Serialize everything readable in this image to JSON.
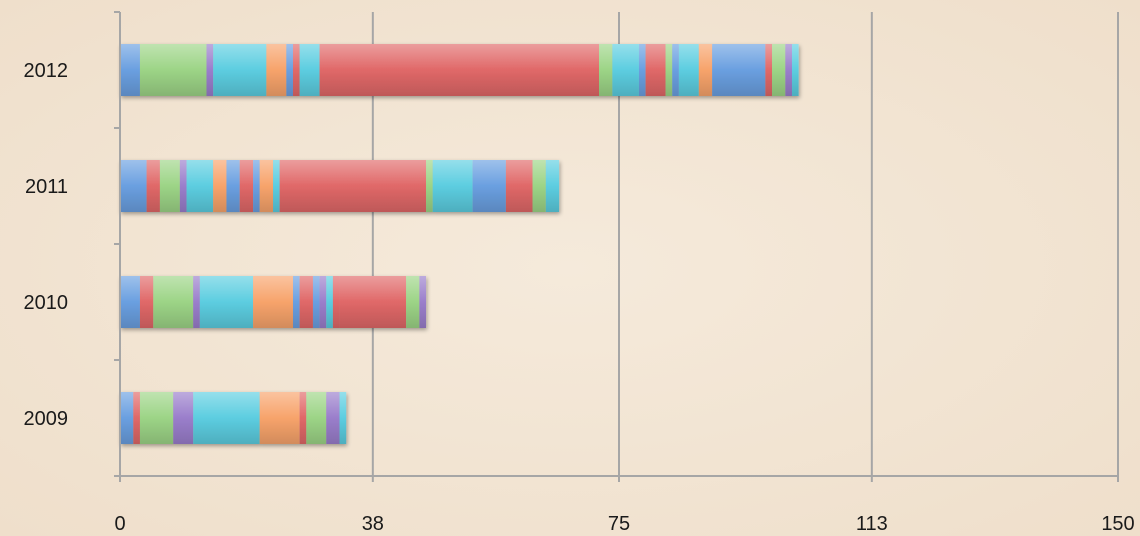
{
  "chart_data": {
    "type": "bar",
    "orientation": "horizontal",
    "stacked": true,
    "title": "",
    "xlabel": "",
    "ylabel": "",
    "categories": [
      "2009",
      "2010",
      "2011",
      "2012"
    ],
    "xlim": [
      0,
      150
    ],
    "x_ticks": [
      "0",
      "38",
      "75",
      "113",
      "150"
    ],
    "grid": "vertical",
    "legend": "none",
    "segment_colors": {
      "blue": "#6a9fe0",
      "red": "#e06868",
      "green": "#9cd486",
      "purple": "#9a7ecb",
      "cyan": "#5ccde0",
      "orange": "#f7a36b"
    },
    "stacks": [
      {
        "category": "2009",
        "segments": [
          {
            "color": "blue",
            "value": 2.0
          },
          {
            "color": "red",
            "value": 1.0
          },
          {
            "color": "green",
            "value": 5.0
          },
          {
            "color": "purple",
            "value": 3.0
          },
          {
            "color": "cyan",
            "value": 10.0
          },
          {
            "color": "orange",
            "value": 6.0
          },
          {
            "color": "red",
            "value": 1.0
          },
          {
            "color": "green",
            "value": 3.0
          },
          {
            "color": "purple",
            "value": 2.0
          },
          {
            "color": "cyan",
            "value": 1.0
          }
        ]
      },
      {
        "category": "2010",
        "segments": [
          {
            "color": "blue",
            "value": 3.0
          },
          {
            "color": "red",
            "value": 2.0
          },
          {
            "color": "green",
            "value": 6.0
          },
          {
            "color": "purple",
            "value": 1.0
          },
          {
            "color": "cyan",
            "value": 8.0
          },
          {
            "color": "orange",
            "value": 6.0
          },
          {
            "color": "blue",
            "value": 1.0
          },
          {
            "color": "red",
            "value": 2.0
          },
          {
            "color": "blue",
            "value": 1.0
          },
          {
            "color": "purple",
            "value": 1.0
          },
          {
            "color": "cyan",
            "value": 1.0
          },
          {
            "color": "red",
            "value": 1.0
          },
          {
            "color": "red",
            "value": 10.0
          },
          {
            "color": "green",
            "value": 2.0
          },
          {
            "color": "purple",
            "value": 1.0
          }
        ]
      },
      {
        "category": "2011",
        "segments": [
          {
            "color": "blue",
            "value": 4.0
          },
          {
            "color": "red",
            "value": 2.0
          },
          {
            "color": "green",
            "value": 3.0
          },
          {
            "color": "purple",
            "value": 1.0
          },
          {
            "color": "cyan",
            "value": 4.0
          },
          {
            "color": "orange",
            "value": 2.0
          },
          {
            "color": "blue",
            "value": 2.0
          },
          {
            "color": "red",
            "value": 2.0
          },
          {
            "color": "blue",
            "value": 1.0
          },
          {
            "color": "orange",
            "value": 2.0
          },
          {
            "color": "cyan",
            "value": 1.0
          },
          {
            "color": "red",
            "value": 22.0
          },
          {
            "color": "green",
            "value": 1.0
          },
          {
            "color": "cyan",
            "value": 6.0
          },
          {
            "color": "blue",
            "value": 5.0
          },
          {
            "color": "red",
            "value": 4.0
          },
          {
            "color": "green",
            "value": 2.0
          },
          {
            "color": "cyan",
            "value": 2.0
          }
        ]
      },
      {
        "category": "2012",
        "segments": [
          {
            "color": "blue",
            "value": 3.0
          },
          {
            "color": "green",
            "value": 10.0
          },
          {
            "color": "purple",
            "value": 1.0
          },
          {
            "color": "cyan",
            "value": 8.0
          },
          {
            "color": "orange",
            "value": 3.0
          },
          {
            "color": "blue",
            "value": 1.0
          },
          {
            "color": "red",
            "value": 1.0
          },
          {
            "color": "cyan",
            "value": 3.0
          },
          {
            "color": "red",
            "value": 42.0
          },
          {
            "color": "green",
            "value": 2.0
          },
          {
            "color": "cyan",
            "value": 4.0
          },
          {
            "color": "blue",
            "value": 1.0
          },
          {
            "color": "red",
            "value": 3.0
          },
          {
            "color": "green",
            "value": 1.0
          },
          {
            "color": "blue",
            "value": 1.0
          },
          {
            "color": "cyan",
            "value": 3.0
          },
          {
            "color": "orange",
            "value": 2.0
          },
          {
            "color": "blue",
            "value": 8.0
          },
          {
            "color": "red",
            "value": 1.0
          },
          {
            "color": "green",
            "value": 2.0
          },
          {
            "color": "purple",
            "value": 1.0
          },
          {
            "color": "cyan",
            "value": 1.0
          }
        ]
      }
    ]
  }
}
